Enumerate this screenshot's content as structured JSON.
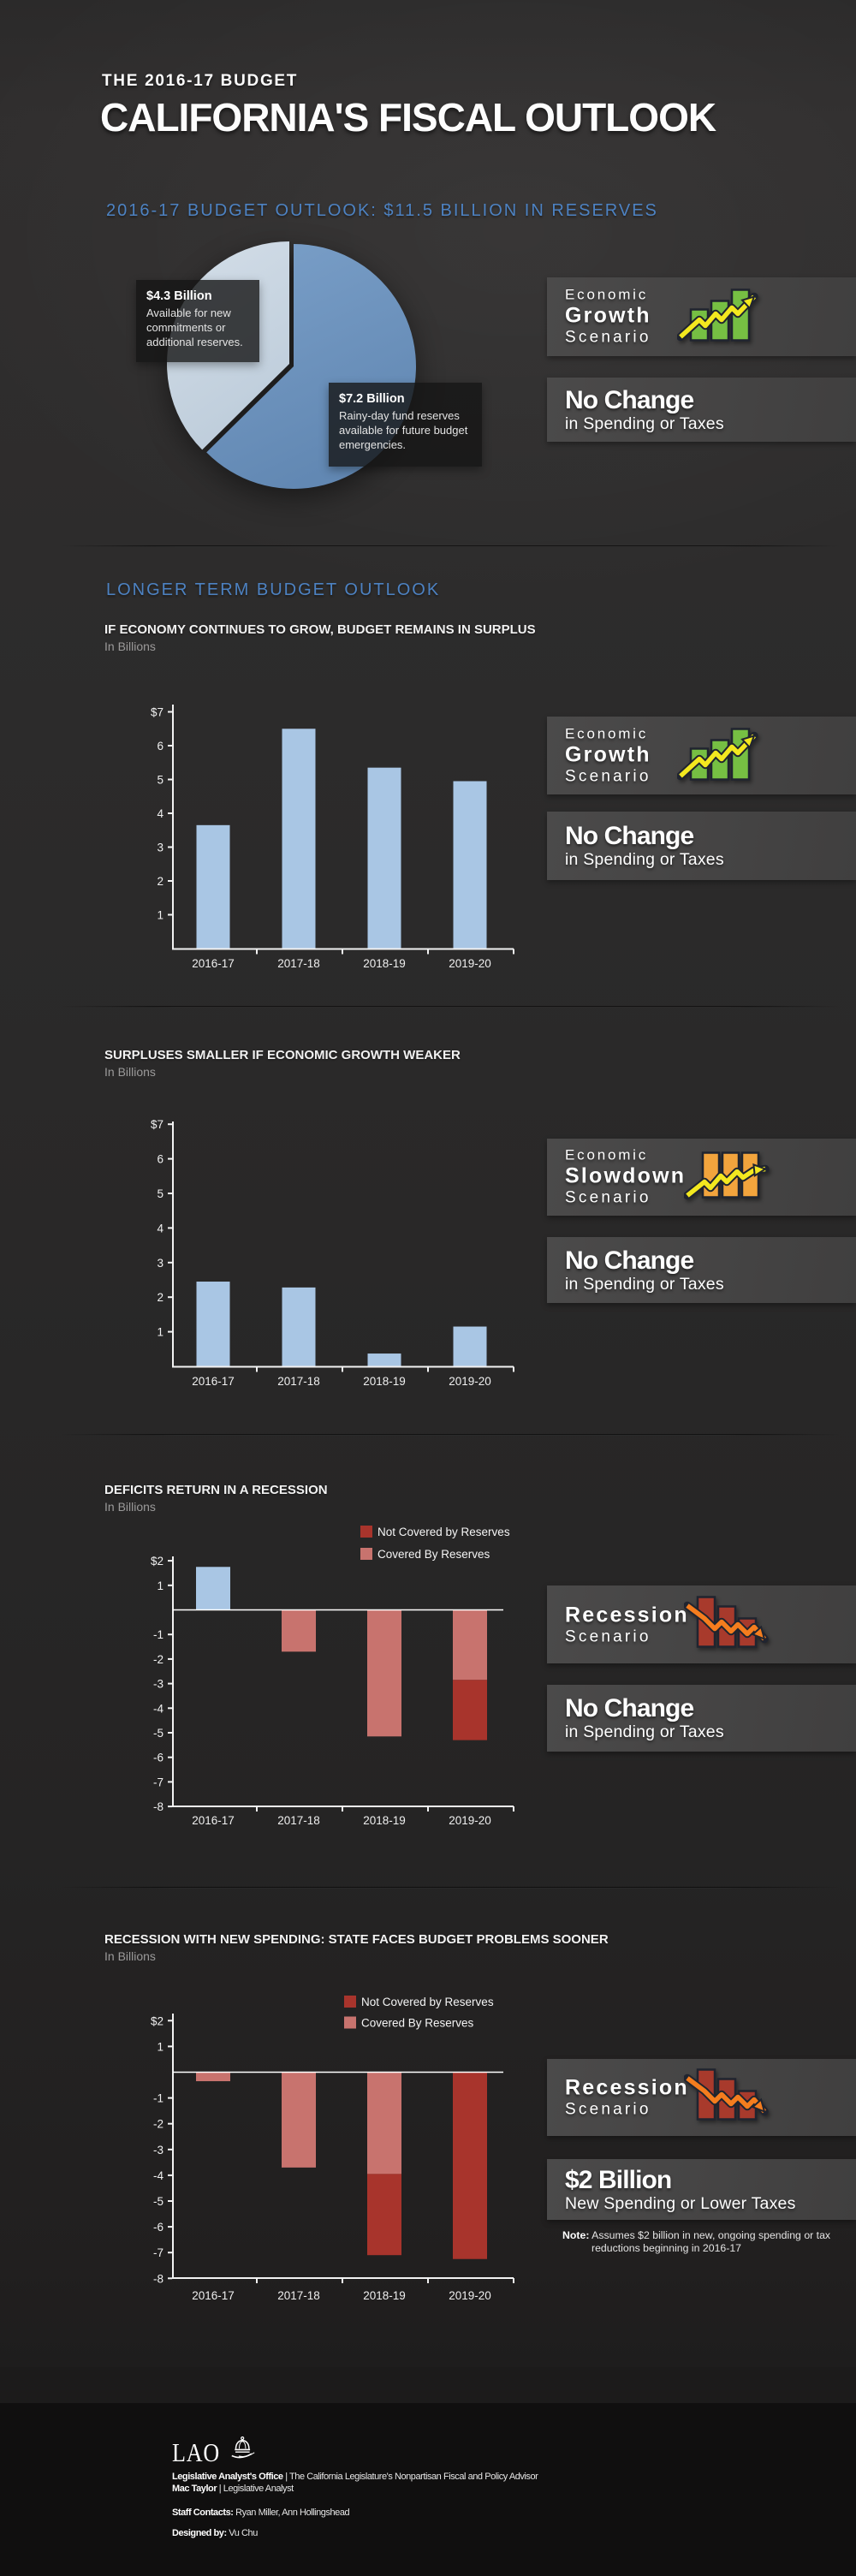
{
  "header": {
    "kicker": "THE 2016-17 BUDGET",
    "title": "CALIFORNIA'S FISCAL OUTLOOK"
  },
  "sections": {
    "reserves_heading": "2016-17 BUDGET OUTLOOK: $11.5 BILLION IN RESERVES",
    "longer_term_heading": "LONGER TERM BUDGET OUTLOOK"
  },
  "colors": {
    "accent_blue": "#4d82c2",
    "bar_blue": "#a9c6e4",
    "covered_red": "#c8736e",
    "not_covered_red": "#a8342c",
    "pie_rainy_day": "#6e95c0",
    "pie_available": "#ccd8e4",
    "icon_green": "#76bf43",
    "icon_orange": "#f2a43d",
    "icon_dark_red": "#a83a2c",
    "arrow_yellow": "#f3e81f",
    "arrow_orange": "#f57d1e"
  },
  "chart_data": [
    {
      "type": "pie",
      "title": "2016-17 BUDGET OUTLOOK: $11.5 BILLION IN RESERVES",
      "total_billions": 11.5,
      "slices": [
        {
          "label": "$7.2 Billion",
          "desc": "Rainy-day fund reserves available for future budget emergencies.",
          "value": 7.2,
          "color_key": "pie_rainy_day"
        },
        {
          "label": "$4.3 Billion",
          "desc": "Available for new commitments or additional reserves.",
          "value": 4.3,
          "color_key": "pie_available"
        }
      ]
    },
    {
      "type": "bar",
      "title": "IF ECONOMY CONTINUES TO GROW, BUDGET REMAINS IN SURPLUS",
      "units": "In Billions",
      "categories": [
        "2016-17",
        "2017-18",
        "2018-19",
        "2019-20"
      ],
      "values": [
        3.65,
        6.5,
        5.35,
        4.95
      ],
      "ylim": [
        0,
        7
      ],
      "yticks": [
        [
          "$7",
          7
        ],
        [
          "6",
          6
        ],
        [
          "5",
          5
        ],
        [
          "4",
          4
        ],
        [
          "3",
          3
        ],
        [
          "2",
          2
        ],
        [
          "1",
          1
        ]
      ]
    },
    {
      "type": "bar",
      "title": "SURPLUSES SMALLER IF ECONOMIC GROWTH WEAKER",
      "units": "In Billions",
      "categories": [
        "2016-17",
        "2017-18",
        "2018-19",
        "2019-20"
      ],
      "values": [
        2.45,
        2.28,
        0.37,
        1.15
      ],
      "ylim": [
        0,
        7
      ],
      "yticks": [
        [
          "$7",
          7
        ],
        [
          "6",
          6
        ],
        [
          "5",
          5
        ],
        [
          "4",
          4
        ],
        [
          "3",
          3
        ],
        [
          "2",
          2
        ],
        [
          "1",
          1
        ]
      ]
    },
    {
      "type": "stacked-bar",
      "title": "DEFICITS RETURN IN A RECESSION",
      "units": "In Billions",
      "categories": [
        "2016-17",
        "2017-18",
        "2018-19",
        "2019-20"
      ],
      "legend": [
        {
          "label": "Not Covered by Reserves",
          "color_key": "not_covered_red"
        },
        {
          "label": "Covered By Reserves",
          "color_key": "covered_red"
        }
      ],
      "series": [
        [
          {
            "value": 1.75,
            "color_key": "bar_blue"
          }
        ],
        [
          {
            "value": -1.7,
            "color_key": "covered_red"
          }
        ],
        [
          {
            "value": -5.15,
            "color_key": "covered_red"
          }
        ],
        [
          {
            "value": -2.85,
            "color_key": "covered_red"
          },
          {
            "value": -2.45,
            "color_key": "not_covered_red"
          }
        ]
      ],
      "ylim": [
        -8,
        2
      ],
      "yticks": [
        [
          "$2",
          2
        ],
        [
          "1",
          1
        ],
        [
          "-1",
          -1
        ],
        [
          "-2",
          -2
        ],
        [
          "-3",
          -3
        ],
        [
          "-4",
          -4
        ],
        [
          "-5",
          -5
        ],
        [
          "-6",
          -6
        ],
        [
          "-7",
          -7
        ],
        [
          "-8",
          -8
        ]
      ]
    },
    {
      "type": "stacked-bar",
      "title": "RECESSION WITH NEW SPENDING: STATE FACES BUDGET PROBLEMS SOONER",
      "units": "In Billions",
      "categories": [
        "2016-17",
        "2017-18",
        "2018-19",
        "2019-20"
      ],
      "legend": [
        {
          "label": "Not Covered by Reserves",
          "color_key": "not_covered_red"
        },
        {
          "label": "Covered By Reserves",
          "color_key": "covered_red"
        }
      ],
      "series": [
        [
          {
            "value": -0.35,
            "color_key": "covered_red"
          }
        ],
        [
          {
            "value": -3.7,
            "color_key": "covered_red"
          }
        ],
        [
          {
            "value": -3.95,
            "color_key": "covered_red"
          },
          {
            "value": -3.15,
            "color_key": "not_covered_red"
          }
        ],
        [
          {
            "value": -7.25,
            "color_key": "not_covered_red"
          }
        ]
      ],
      "ylim": [
        -8,
        2
      ],
      "yticks": [
        [
          "$2",
          2
        ],
        [
          "1",
          1
        ],
        [
          "-1",
          -1
        ],
        [
          "-2",
          -2
        ],
        [
          "-3",
          -3
        ],
        [
          "-4",
          -4
        ],
        [
          "-5",
          -5
        ],
        [
          "-6",
          -6
        ],
        [
          "-7",
          -7
        ],
        [
          "-8",
          -8
        ]
      ]
    }
  ],
  "pie_labels": {
    "available": {
      "amount": "$4.3 Billion",
      "desc": "Available for new commitments or additional reserves."
    },
    "rainy_day": {
      "amount": "$7.2 Billion",
      "desc": "Rainy-day fund reserves available for future budget emergencies."
    }
  },
  "panels": {
    "growth": {
      "line1": "Economic",
      "line2": "Growth",
      "line3": "Scenario",
      "icon": "growth-icon"
    },
    "slowdown": {
      "line1": "Economic",
      "line2": "Slowdown",
      "line3": "Scenario",
      "icon": "slowdown-icon"
    },
    "recession": {
      "line1": "Recession",
      "line2": "Scenario",
      "icon": "recession-icon"
    },
    "no_change": {
      "line1": "No Change",
      "line2": "in Spending or Taxes"
    },
    "two_billion": {
      "line1": "$2 Billion",
      "line2": "New Spending or Lower Taxes"
    },
    "note": {
      "bold": "Note:",
      "text": " Assumes $2 billion in new, ongoing spending or tax reductions beginning in 2016-17"
    }
  },
  "footer": {
    "logo": "LAO",
    "org_bold": "Legislative Analyst's Office",
    "org_rest": " | The California Legislature's Nonpartisan Fiscal and Policy Advisor",
    "analyst_bold": "Mac Taylor",
    "analyst_rest": " | Legislative Analyst",
    "contacts_bold": "Staff Contacts:",
    "contacts_rest": " Ryan Miller, Ann Hollingshead",
    "designer_bold": "Designed by:",
    "designer_rest": " Vu Chu"
  }
}
